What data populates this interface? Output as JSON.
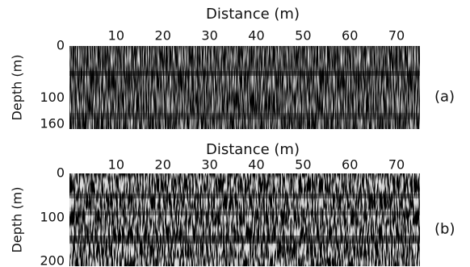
{
  "chart_data": [
    {
      "type": "image",
      "title": "Distance (m)",
      "y_label": "Depth (m)",
      "panel_label": "(a)",
      "xlim": [
        0,
        75
      ],
      "xticks": [
        10,
        20,
        30,
        40,
        50,
        60,
        70
      ],
      "ylim": [
        0,
        160
      ],
      "yticks": [
        0,
        100,
        160
      ]
    },
    {
      "type": "image",
      "title": "Distance (m)",
      "y_label": "Depth (m)",
      "panel_label": "(b)",
      "xlim": [
        0,
        75
      ],
      "xticks": [
        10,
        20,
        30,
        40,
        50,
        60,
        70
      ],
      "ylim": [
        0,
        210
      ],
      "yticks": [
        0,
        100,
        200
      ]
    }
  ]
}
